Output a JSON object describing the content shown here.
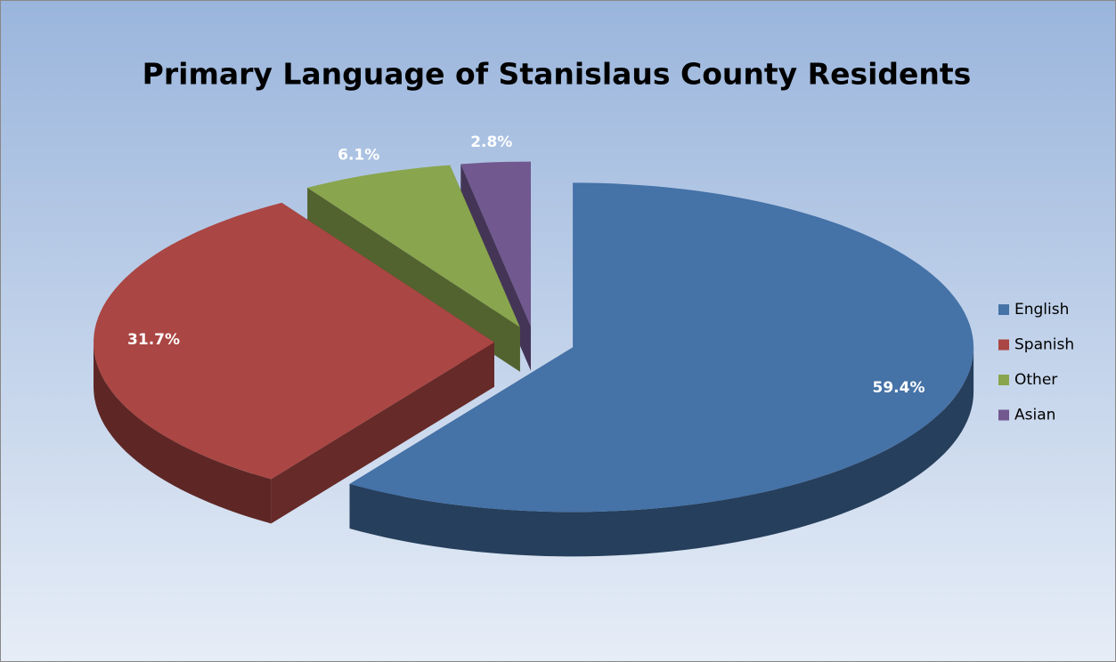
{
  "chart_data": {
    "type": "pie",
    "title": "Primary Language of Stanislaus County Residents",
    "categories": [
      "English",
      "Spanish",
      "Other",
      "Asian"
    ],
    "values": [
      59.4,
      31.7,
      6.1,
      2.8
    ],
    "value_labels": [
      "59.4%",
      "31.7%",
      "6.1%",
      "2.8%"
    ],
    "colors": [
      "#4572a7",
      "#aa4643",
      "#89a54e",
      "#71588f"
    ],
    "legend": "right"
  }
}
